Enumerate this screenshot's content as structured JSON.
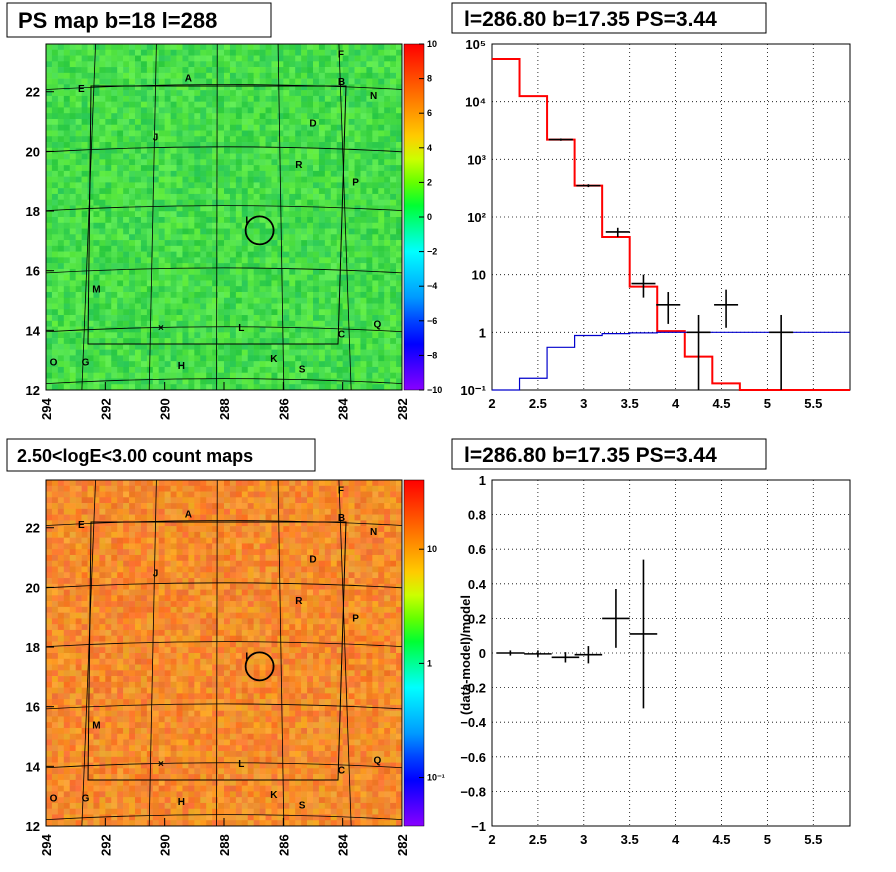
{
  "panels": {
    "ps_map": {
      "title": "PS map b=18 l=288",
      "xticks": [
        "294",
        "292",
        "290",
        "288",
        "286",
        "284",
        "282"
      ],
      "yticks": [
        "22",
        "20",
        "18",
        "16",
        "14",
        "12"
      ],
      "colorbar_ticks": [
        "10",
        "8",
        "6",
        "4",
        "2",
        "0",
        "−2",
        "−4",
        "−6",
        "−8",
        "−10"
      ]
    },
    "count_map": {
      "title": "2.50<logE<3.00 count maps",
      "xticks": [
        "294",
        "292",
        "290",
        "288",
        "286",
        "284",
        "282"
      ],
      "yticks": [
        "22",
        "20",
        "18",
        "16",
        "14",
        "12"
      ],
      "colorbar_ticks": [
        "10",
        "1",
        "10⁻¹"
      ]
    },
    "spectrum": {
      "title": "l=286.80 b=17.35 PS=3.44",
      "xticks": [
        "2",
        "2.5",
        "3",
        "3.5",
        "4",
        "4.5",
        "5",
        "5.5"
      ],
      "yticks": [
        "10⁵",
        "10⁴",
        "10³",
        "10²",
        "10",
        "1",
        "10⁻¹"
      ]
    },
    "residual": {
      "title": "l=286.80 b=17.35 PS=3.44",
      "ylabel": "(data-model)/model",
      "xticks": [
        "2",
        "2.5",
        "3",
        "3.5",
        "4",
        "4.5",
        "5",
        "5.5"
      ],
      "yticks": [
        "1",
        "0.8",
        "0.6",
        "0.4",
        "0.2",
        "0",
        "−0.2",
        "−0.4",
        "−0.6",
        "−0.8",
        "−1"
      ]
    }
  },
  "sources": [
    "A",
    "B",
    "C",
    "D",
    "E",
    "F",
    "G",
    "H",
    "I",
    "J",
    "K",
    "L",
    "M",
    "N",
    "O",
    "P",
    "Q",
    "R",
    "S"
  ],
  "colors": {
    "model": "#ff0000",
    "background": "#0000cc",
    "data": "#000000",
    "map_green": "#33dd44",
    "map_orange": "#f08a28"
  },
  "chart_data": [
    {
      "type": "heatmap",
      "title": "PS map b=18 l=288",
      "xlabel": "",
      "ylabel": "",
      "xlim": [
        294,
        282
      ],
      "ylim": [
        12,
        23.6
      ],
      "colorbar_range": [
        -10,
        10
      ],
      "marker": {
        "l": 286.8,
        "b": 17.35
      }
    },
    {
      "type": "heatmap",
      "title": "2.50<logE<3.00 count maps",
      "xlabel": "",
      "ylabel": "",
      "xlim": [
        294,
        282
      ],
      "ylim": [
        12,
        23.6
      ],
      "colorbar_scale": "log",
      "marker": {
        "l": 286.8,
        "b": 17.35
      }
    },
    {
      "type": "line",
      "title": "l=286.80 b=17.35 PS=3.44",
      "xlim": [
        2,
        5.9
      ],
      "ylim": [
        0.1,
        100000
      ],
      "yscale": "log",
      "grid": true,
      "series": [
        {
          "style": "step-red",
          "edges": [
            2.0,
            2.3,
            2.6,
            2.9,
            3.2,
            3.5,
            3.8,
            4.1,
            4.4,
            4.7,
            5.0,
            5.3,
            5.6,
            5.9
          ],
          "values": [
            55000,
            12500,
            2200,
            350,
            45,
            6.2,
            1.05,
            0.38,
            0.13,
            0.1,
            0.1,
            0.1,
            0.1
          ]
        },
        {
          "style": "step-blue",
          "edges": [
            2.0,
            2.3,
            2.6,
            2.9,
            3.2,
            3.5,
            3.8,
            4.1,
            4.4,
            4.7,
            5.0,
            5.3,
            5.6,
            5.9
          ],
          "values": [
            0.1,
            0.16,
            0.55,
            0.88,
            0.95,
            0.98,
            1.0,
            1.0,
            1.0,
            1.0,
            1.0,
            1.0,
            1.0
          ]
        },
        {
          "style": "data-points",
          "x": [
            2.75,
            3.05,
            3.37,
            3.65,
            3.92,
            4.25,
            4.55,
            5.15
          ],
          "y": [
            2200,
            350,
            55,
            7,
            3,
            1,
            3,
            1
          ],
          "ylow": [
            2100,
            330,
            45,
            4,
            1.4,
            0.1,
            1.2,
            0.1
          ],
          "yhigh": [
            2300,
            370,
            65,
            10,
            5,
            2,
            5.5,
            2
          ]
        }
      ]
    },
    {
      "type": "scatter",
      "title": "l=286.80 b=17.35 PS=3.44",
      "ylabel": "(data-model)/model",
      "xlim": [
        2,
        5.9
      ],
      "ylim": [
        -1,
        1
      ],
      "grid": true,
      "x": [
        2.2,
        2.5,
        2.8,
        3.05,
        3.35,
        3.65
      ],
      "y": [
        0.0,
        -0.005,
        -0.025,
        -0.01,
        0.2,
        0.11
      ],
      "yerr": [
        0.015,
        0.02,
        0.03,
        0.05,
        0.17,
        0.43
      ],
      "xerr": [
        0.15,
        0.15,
        0.15,
        0.15,
        0.15,
        0.15
      ]
    }
  ]
}
